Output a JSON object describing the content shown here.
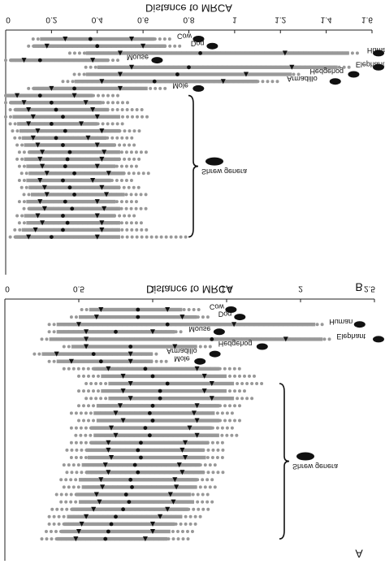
{
  "chart_data": [
    {
      "type": "interval",
      "panel": "B",
      "xlabel": "Distance to MRCA",
      "xlim": [
        0,
        1.6
      ],
      "xticks": [
        0,
        0.2,
        0.4,
        0.6,
        0.8,
        1,
        1.2,
        1.4,
        1.6
      ],
      "color": "#999999",
      "annotation": "Shrew genera",
      "rows": [
        {
          "label": "Cow",
          "values": [
            0.12,
            0.15,
            0.26,
            0.37,
            0.55,
            0.65,
            0.72
          ]
        },
        {
          "label": "Dog",
          "values": [
            0.1,
            0.12,
            0.18,
            0.4,
            0.6,
            0.7,
            0.78
          ]
        },
        {
          "label": "Human",
          "values": [
            0.28,
            0.35,
            0.5,
            0.85,
            1.22,
            1.5,
            1.55
          ]
        },
        {
          "label": "Mouse",
          "values": [
            0.0,
            0.02,
            0.08,
            0.15,
            0.38,
            0.45,
            0.5
          ]
        },
        {
          "label": "Elephant",
          "values": [
            0.35,
            0.4,
            0.55,
            0.8,
            1.25,
            1.45,
            1.5
          ]
        },
        {
          "label": "Hedgehog",
          "values": [
            0.3,
            0.35,
            0.5,
            0.75,
            1.05,
            1.25,
            1.3
          ]
        },
        {
          "label": "Armadillo",
          "values": [
            0.25,
            0.3,
            0.42,
            0.65,
            0.95,
            1.1,
            1.2
          ]
        },
        {
          "label": "Mole",
          "values": [
            0.1,
            0.12,
            0.2,
            0.3,
            0.5,
            0.62,
            0.7
          ]
        },
        {
          "values": [
            0.0,
            0.0,
            0.05,
            0.15,
            0.3,
            0.38,
            0.5
          ]
        },
        {
          "values": [
            0.0,
            0.02,
            0.08,
            0.2,
            0.35,
            0.42,
            0.55
          ]
        },
        {
          "values": [
            0.02,
            0.04,
            0.1,
            0.22,
            0.38,
            0.45,
            0.6
          ]
        },
        {
          "values": [
            0.0,
            0.03,
            0.12,
            0.25,
            0.4,
            0.5,
            0.62
          ]
        },
        {
          "values": [
            0.02,
            0.05,
            0.1,
            0.2,
            0.33,
            0.4,
            0.52
          ]
        },
        {
          "values": [
            0.03,
            0.06,
            0.14,
            0.26,
            0.42,
            0.5,
            0.6
          ]
        },
        {
          "values": [
            0.04,
            0.07,
            0.12,
            0.22,
            0.36,
            0.44,
            0.56
          ]
        },
        {
          "values": [
            0.05,
            0.08,
            0.14,
            0.25,
            0.4,
            0.48,
            0.58
          ]
        },
        {
          "values": [
            0.06,
            0.1,
            0.16,
            0.28,
            0.43,
            0.5,
            0.62
          ]
        },
        {
          "values": [
            0.05,
            0.08,
            0.15,
            0.27,
            0.42,
            0.5,
            0.6
          ]
        },
        {
          "values": [
            0.06,
            0.09,
            0.16,
            0.26,
            0.4,
            0.48,
            0.58
          ]
        },
        {
          "values": [
            0.07,
            0.1,
            0.18,
            0.3,
            0.45,
            0.52,
            0.64
          ]
        },
        {
          "values": [
            0.06,
            0.09,
            0.15,
            0.25,
            0.38,
            0.46,
            0.56
          ]
        },
        {
          "values": [
            0.07,
            0.1,
            0.17,
            0.28,
            0.42,
            0.5,
            0.6
          ]
        },
        {
          "values": [
            0.08,
            0.11,
            0.18,
            0.3,
            0.44,
            0.52,
            0.62
          ]
        },
        {
          "values": [
            0.06,
            0.09,
            0.15,
            0.26,
            0.4,
            0.48,
            0.58
          ]
        },
        {
          "values": [
            0.08,
            0.1,
            0.17,
            0.29,
            0.43,
            0.5,
            0.62
          ]
        },
        {
          "values": [
            0.05,
            0.08,
            0.14,
            0.25,
            0.4,
            0.48,
            0.58
          ]
        },
        {
          "values": [
            0.06,
            0.09,
            0.16,
            0.27,
            0.42,
            0.5,
            0.6
          ]
        },
        {
          "values": [
            0.04,
            0.07,
            0.13,
            0.25,
            0.42,
            0.5,
            0.62
          ]
        },
        {
          "values": [
            0.02,
            0.04,
            0.1,
            0.2,
            0.4,
            0.5,
            0.8
          ]
        }
      ]
    },
    {
      "type": "interval",
      "panel": "A",
      "xlabel": "Distance to MRCA",
      "xlim": [
        0,
        2.5
      ],
      "xticks": [
        0,
        0.5,
        1,
        1.5,
        2,
        2.5
      ],
      "color": "#999999",
      "annotation": "Shrew genera",
      "rows": [
        {
          "label": "Cow",
          "values": [
            0.52,
            0.57,
            0.65,
            0.9,
            1.1,
            1.2,
            1.34
          ]
        },
        {
          "label": "Dog",
          "values": [
            0.45,
            0.5,
            0.62,
            0.9,
            1.2,
            1.3,
            1.4
          ]
        },
        {
          "label": "Human",
          "values": [
            0.3,
            0.35,
            0.5,
            1.1,
            1.55,
            2.1,
            2.15
          ]
        },
        {
          "label": "Mouse",
          "values": [
            0.3,
            0.35,
            0.55,
            0.75,
            1.0,
            1.15,
            1.2
          ]
        },
        {
          "label": "Elephant",
          "values": [
            0.25,
            0.3,
            0.55,
            1.4,
            1.9,
            2.15,
            2.2
          ]
        },
        {
          "label": "Hedgehog",
          "values": [
            0.4,
            0.45,
            0.55,
            0.85,
            1.15,
            1.3,
            1.4
          ]
        },
        {
          "label": "Armadillo",
          "values": [
            0.2,
            0.25,
            0.35,
            0.6,
            0.85,
            1.0,
            1.05
          ]
        },
        {
          "label": "Mole",
          "values": [
            0.3,
            0.35,
            0.45,
            0.65,
            0.85,
            1.0,
            1.1
          ]
        },
        {
          "values": [
            0.4,
            0.6,
            0.7,
            0.95,
            1.3,
            1.45,
            1.6
          ]
        },
        {
          "values": [
            0.5,
            0.65,
            0.8,
            1.0,
            1.35,
            1.5,
            1.7
          ]
        },
        {
          "values": [
            0.55,
            0.7,
            0.85,
            1.1,
            1.4,
            1.55,
            1.75
          ]
        },
        {
          "values": [
            0.5,
            0.65,
            0.8,
            1.05,
            1.35,
            1.5,
            1.65
          ]
        },
        {
          "values": [
            0.55,
            0.7,
            0.85,
            1.05,
            1.4,
            1.55,
            1.7
          ]
        },
        {
          "values": [
            0.5,
            0.62,
            0.78,
            1.0,
            1.3,
            1.45,
            1.6
          ]
        },
        {
          "values": [
            0.45,
            0.6,
            0.75,
            0.98,
            1.28,
            1.42,
            1.55
          ]
        },
        {
          "values": [
            0.5,
            0.62,
            0.8,
            1.0,
            1.3,
            1.45,
            1.6
          ]
        },
        {
          "values": [
            0.45,
            0.58,
            0.72,
            0.95,
            1.25,
            1.4,
            1.55
          ]
        },
        {
          "values": [
            0.48,
            0.6,
            0.75,
            0.98,
            1.3,
            1.45,
            1.6
          ]
        },
        {
          "values": [
            0.45,
            0.58,
            0.7,
            0.92,
            1.22,
            1.38,
            1.5
          ]
        },
        {
          "values": [
            0.42,
            0.55,
            0.7,
            0.9,
            1.2,
            1.35,
            1.5
          ]
        },
        {
          "values": [
            0.45,
            0.56,
            0.72,
            0.92,
            1.22,
            1.36,
            1.5
          ]
        },
        {
          "values": [
            0.4,
            0.52,
            0.68,
            0.88,
            1.18,
            1.32,
            1.45
          ]
        },
        {
          "values": [
            0.42,
            0.55,
            0.7,
            0.9,
            1.2,
            1.35,
            1.48
          ]
        },
        {
          "values": [
            0.38,
            0.5,
            0.65,
            0.85,
            1.15,
            1.3,
            1.42
          ]
        },
        {
          "values": [
            0.4,
            0.52,
            0.66,
            0.86,
            1.16,
            1.3,
            1.44
          ]
        },
        {
          "values": [
            0.35,
            0.48,
            0.62,
            0.82,
            1.12,
            1.26,
            1.4
          ]
        },
        {
          "values": [
            0.38,
            0.5,
            0.64,
            0.84,
            1.14,
            1.28,
            1.42
          ]
        },
        {
          "values": [
            0.32,
            0.45,
            0.6,
            0.8,
            1.1,
            1.24,
            1.38
          ]
        },
        {
          "values": [
            0.3,
            0.42,
            0.55,
            0.75,
            1.05,
            1.2,
            1.35
          ]
        },
        {
          "values": [
            0.3,
            0.4,
            0.52,
            0.72,
            1.0,
            1.15,
            1.3
          ]
        },
        {
          "values": [
            0.28,
            0.38,
            0.5,
            0.7,
            1.0,
            1.12,
            1.28
          ]
        },
        {
          "values": [
            0.25,
            0.35,
            0.48,
            0.68,
            0.95,
            1.1,
            1.25
          ]
        }
      ]
    }
  ]
}
